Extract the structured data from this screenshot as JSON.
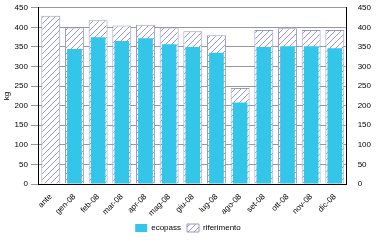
{
  "chart_data": {
    "type": "bar",
    "y_label": "kg",
    "categories": [
      "ante",
      "gen-08",
      "feb-08",
      "mar-08",
      "apr-08",
      "mag-08",
      "giu-08",
      "lug-08",
      "ago-08",
      "set-08",
      "ott-08",
      "nov-08",
      "dic-08"
    ],
    "series": [
      {
        "name": "riferimento",
        "color": "#9999cc",
        "values": [
          430,
          400,
          418,
          405,
          407,
          400,
          390,
          380,
          245,
          393,
          398,
          393,
          393
        ]
      },
      {
        "name": "ecopass",
        "color": "#33c6e8",
        "values": [
          null,
          345,
          375,
          365,
          372,
          357,
          350,
          335,
          208,
          350,
          352,
          352,
          347
        ]
      }
    ],
    "ylim": [
      0,
      450
    ],
    "yticks": [
      0,
      50,
      100,
      150,
      200,
      250,
      300,
      350,
      400,
      450
    ],
    "y2lim": [
      0,
      450
    ],
    "y2ticks": [
      0,
      50,
      100,
      150,
      200,
      250,
      300,
      350,
      400,
      450
    ],
    "grid": true,
    "legend": "bottom"
  }
}
